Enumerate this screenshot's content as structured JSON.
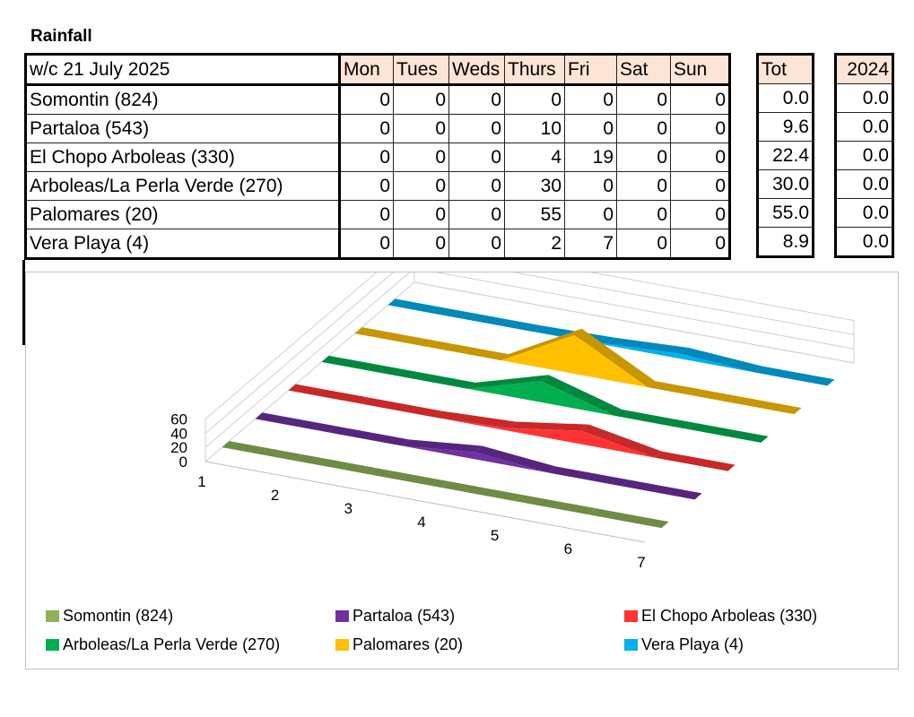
{
  "title": "Rainfall",
  "table": {
    "week_label": "w/c 21 July  2025",
    "days": [
      "Mon",
      "Tues",
      "Weds",
      "Thurs",
      "Fri",
      "Sat",
      "Sun"
    ],
    "total_header": "Tot",
    "prev_year_header": "2024",
    "rows": [
      {
        "name": "Somontin (824)",
        "values": [
          "0",
          "0",
          "0",
          "0",
          "0",
          "0",
          "0"
        ],
        "total": "0.0",
        "prev": "0.0"
      },
      {
        "name": "Partaloa (543)",
        "values": [
          "0",
          "0",
          "0",
          "10",
          "0",
          "0",
          "0"
        ],
        "total": "9.6",
        "prev": "0.0"
      },
      {
        "name": "El Chopo Arboleas (330)",
        "values": [
          "0",
          "0",
          "0",
          "4",
          "19",
          "0",
          "0"
        ],
        "total": "22.4",
        "prev": "0.0"
      },
      {
        "name": "Arboleas/La Perla Verde (270)",
        "values": [
          "0",
          "0",
          "0",
          "30",
          "0",
          "0",
          "0"
        ],
        "total": "30.0",
        "prev": "0.0"
      },
      {
        "name": "Palomares (20)",
        "values": [
          "0",
          "0",
          "0",
          "55",
          "0",
          "0",
          "0"
        ],
        "total": "55.0",
        "prev": "0.0"
      },
      {
        "name": "Vera Playa (4)",
        "values": [
          "0",
          "0",
          "0",
          "2",
          "7",
          "0",
          "0"
        ],
        "total": "8.9",
        "prev": "0.0"
      }
    ]
  },
  "chart_data": {
    "type": "area",
    "categories": [
      "1",
      "2",
      "3",
      "4",
      "5",
      "6",
      "7"
    ],
    "y_ticks": [
      "0",
      "20",
      "40",
      "60"
    ],
    "ylim": [
      0,
      60
    ],
    "grid": true,
    "legend_position": "bottom",
    "series": [
      {
        "name": "Somontin (824)",
        "color": "#8db356",
        "values": [
          0,
          0,
          0,
          0,
          0,
          0,
          0
        ]
      },
      {
        "name": "Partaloa (543)",
        "color": "#7030a0",
        "values": [
          0,
          0,
          0,
          10,
          0,
          0,
          0
        ]
      },
      {
        "name": "El Chopo Arboleas (330)",
        "color": "#ff3333",
        "values": [
          0,
          0,
          0,
          4,
          19,
          0,
          0
        ]
      },
      {
        "name": "Arboleas/La Perla Verde (270)",
        "color": "#00b050",
        "values": [
          0,
          0,
          0,
          30,
          0,
          0,
          0
        ]
      },
      {
        "name": "Palomares (20)",
        "color": "#ffc000",
        "values": [
          0,
          0,
          0,
          55,
          0,
          0,
          0
        ]
      },
      {
        "name": "Vera Playa (4)",
        "color": "#00b0f0",
        "values": [
          0,
          0,
          0,
          2,
          7,
          0,
          0
        ]
      }
    ]
  }
}
